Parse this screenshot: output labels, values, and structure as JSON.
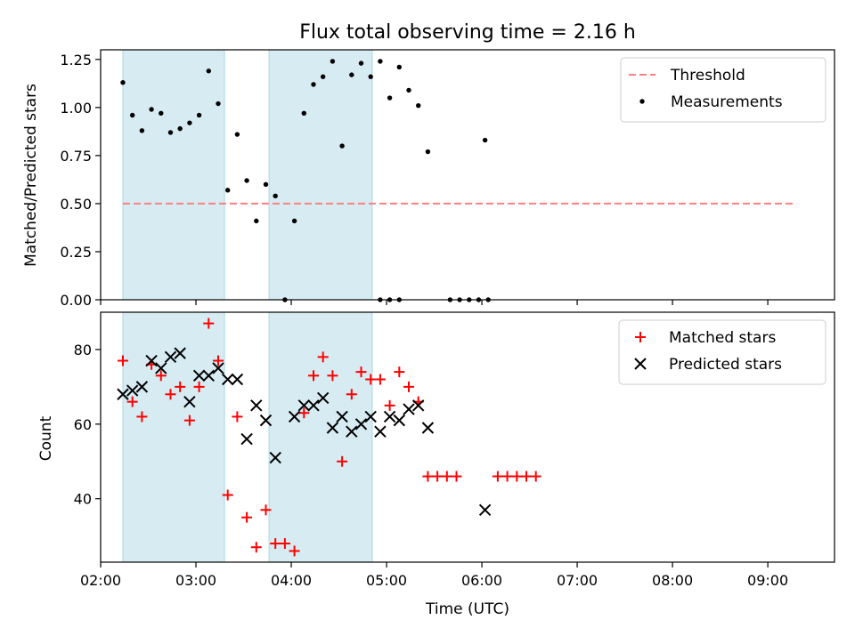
{
  "chart_data": [
    {
      "type": "scatter",
      "title": "Flux total observing time = 2.16 h",
      "xlabel": "",
      "ylabel": "Matched/Predicted stars",
      "ylim": [
        0,
        1.3
      ],
      "xlim": [
        "02:00",
        "09:42"
      ],
      "yticks": [
        "0.00",
        "0.25",
        "0.50",
        "0.75",
        "1.00",
        "1.25"
      ],
      "shaded_intervals": [
        [
          "02:14",
          "03:18"
        ],
        [
          "03:46",
          "04:51"
        ]
      ],
      "shade_color": "#add8e6",
      "legend_position": "upper right",
      "threshold": {
        "name": "Threshold",
        "value": 0.5,
        "color": "#ff7f7f",
        "x_range": [
          "02:14",
          "09:18"
        ]
      },
      "series": [
        {
          "name": "Measurements",
          "color": "#000000",
          "points": [
            [
              "02:14",
              1.13
            ],
            [
              "02:20",
              0.96
            ],
            [
              "02:26",
              0.88
            ],
            [
              "02:32",
              0.99
            ],
            [
              "02:38",
              0.97
            ],
            [
              "02:44",
              0.87
            ],
            [
              "02:50",
              0.89
            ],
            [
              "02:56",
              0.92
            ],
            [
              "03:02",
              0.96
            ],
            [
              "03:08",
              1.19
            ],
            [
              "03:14",
              1.02
            ],
            [
              "03:20",
              0.57
            ],
            [
              "03:26",
              0.86
            ],
            [
              "03:32",
              0.62
            ],
            [
              "03:38",
              0.41
            ],
            [
              "03:44",
              0.6
            ],
            [
              "03:50",
              0.54
            ],
            [
              "03:56",
              0.0
            ],
            [
              "04:02",
              0.41
            ],
            [
              "04:08",
              0.97
            ],
            [
              "04:14",
              1.12
            ],
            [
              "04:20",
              1.16
            ],
            [
              "04:26",
              1.24
            ],
            [
              "04:32",
              0.8
            ],
            [
              "04:38",
              1.17
            ],
            [
              "04:44",
              1.23
            ],
            [
              "04:50",
              1.16
            ],
            [
              "04:56",
              1.24
            ],
            [
              "05:02",
              1.05
            ],
            [
              "05:08",
              1.21
            ],
            [
              "05:14",
              1.09
            ],
            [
              "05:20",
              1.01
            ],
            [
              "05:26",
              0.77
            ],
            [
              "04:56",
              0.0
            ],
            [
              "05:02",
              0.0
            ],
            [
              "05:08",
              0.0
            ],
            [
              "05:40",
              0.0
            ],
            [
              "05:46",
              0.0
            ],
            [
              "05:52",
              0.0
            ],
            [
              "05:58",
              0.0
            ],
            [
              "06:04",
              0.0
            ],
            [
              "06:02",
              0.83
            ]
          ]
        }
      ]
    },
    {
      "type": "scatter",
      "title": "",
      "xlabel": "Time (UTC)",
      "ylabel": "Count",
      "ylim": [
        23,
        90
      ],
      "xlim": [
        "02:00",
        "09:42"
      ],
      "xticks": [
        "02:00",
        "03:00",
        "04:00",
        "05:00",
        "06:00",
        "07:00",
        "08:00",
        "09:00"
      ],
      "yticks": [
        "40",
        "60",
        "80"
      ],
      "shaded_intervals": [
        [
          "02:14",
          "03:18"
        ],
        [
          "03:46",
          "04:51"
        ]
      ],
      "shade_color": "#add8e6",
      "legend_position": "upper right",
      "series": [
        {
          "name": "Matched stars",
          "color": "#ff0000",
          "marker": "+",
          "points": [
            [
              "02:14",
              77
            ],
            [
              "02:20",
              66
            ],
            [
              "02:26",
              62
            ],
            [
              "02:32",
              76
            ],
            [
              "02:38",
              73
            ],
            [
              "02:44",
              68
            ],
            [
              "02:50",
              70
            ],
            [
              "02:56",
              61
            ],
            [
              "03:02",
              70
            ],
            [
              "03:08",
              87
            ],
            [
              "03:14",
              77
            ],
            [
              "03:20",
              41
            ],
            [
              "03:26",
              62
            ],
            [
              "03:32",
              35
            ],
            [
              "03:38",
              27
            ],
            [
              "03:44",
              37
            ],
            [
              "03:50",
              28
            ],
            [
              "03:56",
              28
            ],
            [
              "04:02",
              26
            ],
            [
              "04:08",
              63
            ],
            [
              "04:14",
              73
            ],
            [
              "04:20",
              78
            ],
            [
              "04:26",
              73
            ],
            [
              "04:32",
              50
            ],
            [
              "04:38",
              68
            ],
            [
              "04:44",
              74
            ],
            [
              "04:50",
              72
            ],
            [
              "04:56",
              72
            ],
            [
              "05:02",
              65
            ],
            [
              "05:08",
              74
            ],
            [
              "05:14",
              70
            ],
            [
              "05:20",
              66
            ],
            [
              "05:26",
              46
            ],
            [
              "05:32",
              46
            ],
            [
              "05:38",
              46
            ],
            [
              "05:44",
              46
            ],
            [
              "06:10",
              46
            ],
            [
              "06:16",
              46
            ],
            [
              "06:22",
              46
            ],
            [
              "06:28",
              46
            ],
            [
              "06:34",
              46
            ]
          ]
        },
        {
          "name": "Predicted stars",
          "color": "#000000",
          "marker": "x",
          "points": [
            [
              "02:14",
              68
            ],
            [
              "02:20",
              69
            ],
            [
              "02:26",
              70
            ],
            [
              "02:32",
              77
            ],
            [
              "02:38",
              75
            ],
            [
              "02:44",
              78
            ],
            [
              "02:50",
              79
            ],
            [
              "02:56",
              66
            ],
            [
              "03:02",
              73
            ],
            [
              "03:08",
              73
            ],
            [
              "03:14",
              75
            ],
            [
              "03:20",
              72
            ],
            [
              "03:26",
              72
            ],
            [
              "03:32",
              56
            ],
            [
              "03:38",
              65
            ],
            [
              "03:44",
              61
            ],
            [
              "03:50",
              51
            ],
            [
              "04:02",
              62
            ],
            [
              "04:08",
              65
            ],
            [
              "04:14",
              65
            ],
            [
              "04:20",
              67
            ],
            [
              "04:26",
              59
            ],
            [
              "04:32",
              62
            ],
            [
              "04:38",
              58
            ],
            [
              "04:44",
              60
            ],
            [
              "04:50",
              62
            ],
            [
              "04:56",
              58
            ],
            [
              "05:02",
              62
            ],
            [
              "05:08",
              61
            ],
            [
              "05:14",
              64
            ],
            [
              "05:20",
              65
            ],
            [
              "05:26",
              59
            ],
            [
              "06:02",
              37
            ]
          ]
        }
      ]
    }
  ]
}
